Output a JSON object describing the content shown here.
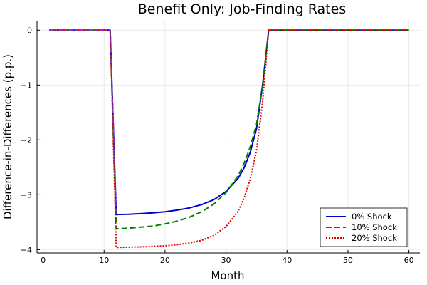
{
  "chart_data": {
    "type": "line",
    "title": "Benefit Only: Job-Finding Rates",
    "xlabel": "Month",
    "ylabel": "Difference-in-Differences (p.p.)",
    "xlim": [
      -1,
      61.8
    ],
    "ylim": [
      -4.06,
      0.16
    ],
    "xticks": [
      0,
      10,
      20,
      30,
      40,
      50,
      60
    ],
    "yticks": [
      0,
      -1,
      -2,
      -3,
      -4
    ],
    "ytick_labels": [
      "0",
      "−1",
      "−2",
      "−3",
      "−4"
    ],
    "grid": true,
    "legend_position": "bottom-right",
    "series": [
      {
        "name": "0% Shock",
        "color": "#0000cc",
        "dash": "solid",
        "points": [
          [
            1,
            0
          ],
          [
            11,
            0
          ],
          [
            12,
            -3.36
          ],
          [
            14,
            -3.355
          ],
          [
            16,
            -3.345
          ],
          [
            18,
            -3.33
          ],
          [
            20,
            -3.31
          ],
          [
            22,
            -3.28
          ],
          [
            24,
            -3.24
          ],
          [
            26,
            -3.18
          ],
          [
            28,
            -3.09
          ],
          [
            30,
            -2.94
          ],
          [
            32,
            -2.7
          ],
          [
            33,
            -2.5
          ],
          [
            34,
            -2.22
          ],
          [
            35,
            -1.8
          ],
          [
            36,
            -1.0
          ],
          [
            37,
            0
          ],
          [
            60,
            0
          ]
        ]
      },
      {
        "name": "10% Shock",
        "color": "#008000",
        "dash": "dashed",
        "points": [
          [
            1,
            0
          ],
          [
            11,
            0
          ],
          [
            12,
            -3.62
          ],
          [
            14,
            -3.61
          ],
          [
            16,
            -3.59
          ],
          [
            18,
            -3.57
          ],
          [
            20,
            -3.53
          ],
          [
            22,
            -3.48
          ],
          [
            24,
            -3.41
          ],
          [
            26,
            -3.31
          ],
          [
            28,
            -3.17
          ],
          [
            30,
            -2.96
          ],
          [
            32,
            -2.65
          ],
          [
            33,
            -2.42
          ],
          [
            34,
            -2.12
          ],
          [
            35,
            -1.72
          ],
          [
            36,
            -1.0
          ],
          [
            37,
            0
          ],
          [
            60,
            0
          ]
        ]
      },
      {
        "name": "20% Shock",
        "color": "#dd0000",
        "dash": "dotted",
        "points": [
          [
            1,
            0
          ],
          [
            11,
            0
          ],
          [
            12,
            -3.96
          ],
          [
            14,
            -3.955
          ],
          [
            16,
            -3.95
          ],
          [
            18,
            -3.94
          ],
          [
            20,
            -3.93
          ],
          [
            22,
            -3.91
          ],
          [
            24,
            -3.88
          ],
          [
            26,
            -3.83
          ],
          [
            28,
            -3.74
          ],
          [
            30,
            -3.58
          ],
          [
            32,
            -3.3
          ],
          [
            33,
            -3.05
          ],
          [
            34,
            -2.7
          ],
          [
            35,
            -2.2
          ],
          [
            36,
            -1.3
          ],
          [
            37,
            0
          ],
          [
            60,
            0
          ]
        ]
      }
    ],
    "overlay_line": {
      "color": "#9b30d0",
      "dash": "dashdot",
      "points": [
        [
          1,
          0
        ],
        [
          11,
          0
        ],
        [
          12,
          -3.3
        ]
      ]
    }
  }
}
